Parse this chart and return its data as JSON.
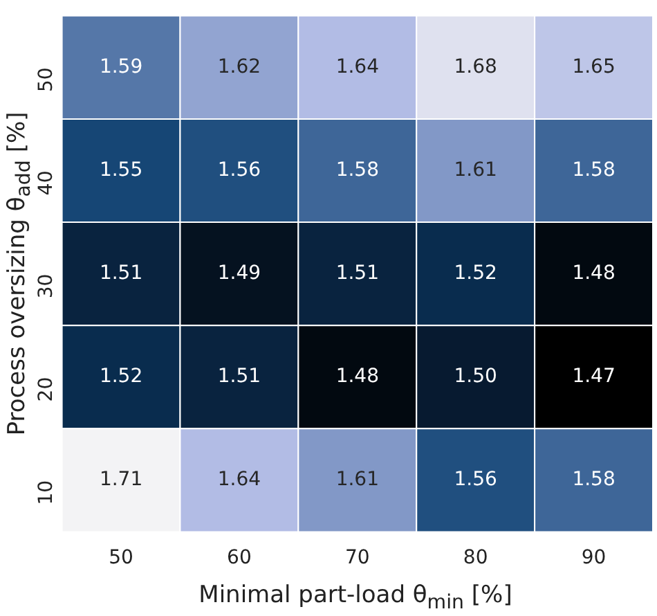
{
  "chart_data": {
    "type": "heatmap",
    "xlabel": "Minimal part-load θ$_{min}$ [%]",
    "ylabel": "Process oversizing θ$_{add}$ [%]",
    "categories": [
      "50",
      "60",
      "70",
      "80",
      "90"
    ],
    "y_categories": [
      "50",
      "40",
      "30",
      "20",
      "10"
    ],
    "cells": [
      [
        1.59,
        1.62,
        1.64,
        1.68,
        1.65
      ],
      [
        1.55,
        1.56,
        1.58,
        1.61,
        1.58
      ],
      [
        1.51,
        1.49,
        1.51,
        1.52,
        1.48
      ],
      [
        1.52,
        1.51,
        1.48,
        1.5,
        1.47
      ],
      [
        1.71,
        1.64,
        1.61,
        1.56,
        1.58
      ]
    ],
    "cell_labels": [
      [
        "1.59",
        "1.62",
        "1.64",
        "1.68",
        "1.65"
      ],
      [
        "1.55",
        "1.56",
        "1.58",
        "1.61",
        "1.58"
      ],
      [
        "1.51",
        "1.49",
        "1.51",
        "1.52",
        "1.48"
      ],
      [
        "1.52",
        "1.51",
        "1.48",
        "1.50",
        "1.47"
      ],
      [
        "1.71",
        "1.64",
        "1.61",
        "1.56",
        "1.58"
      ]
    ],
    "data_labels": true
  }
}
